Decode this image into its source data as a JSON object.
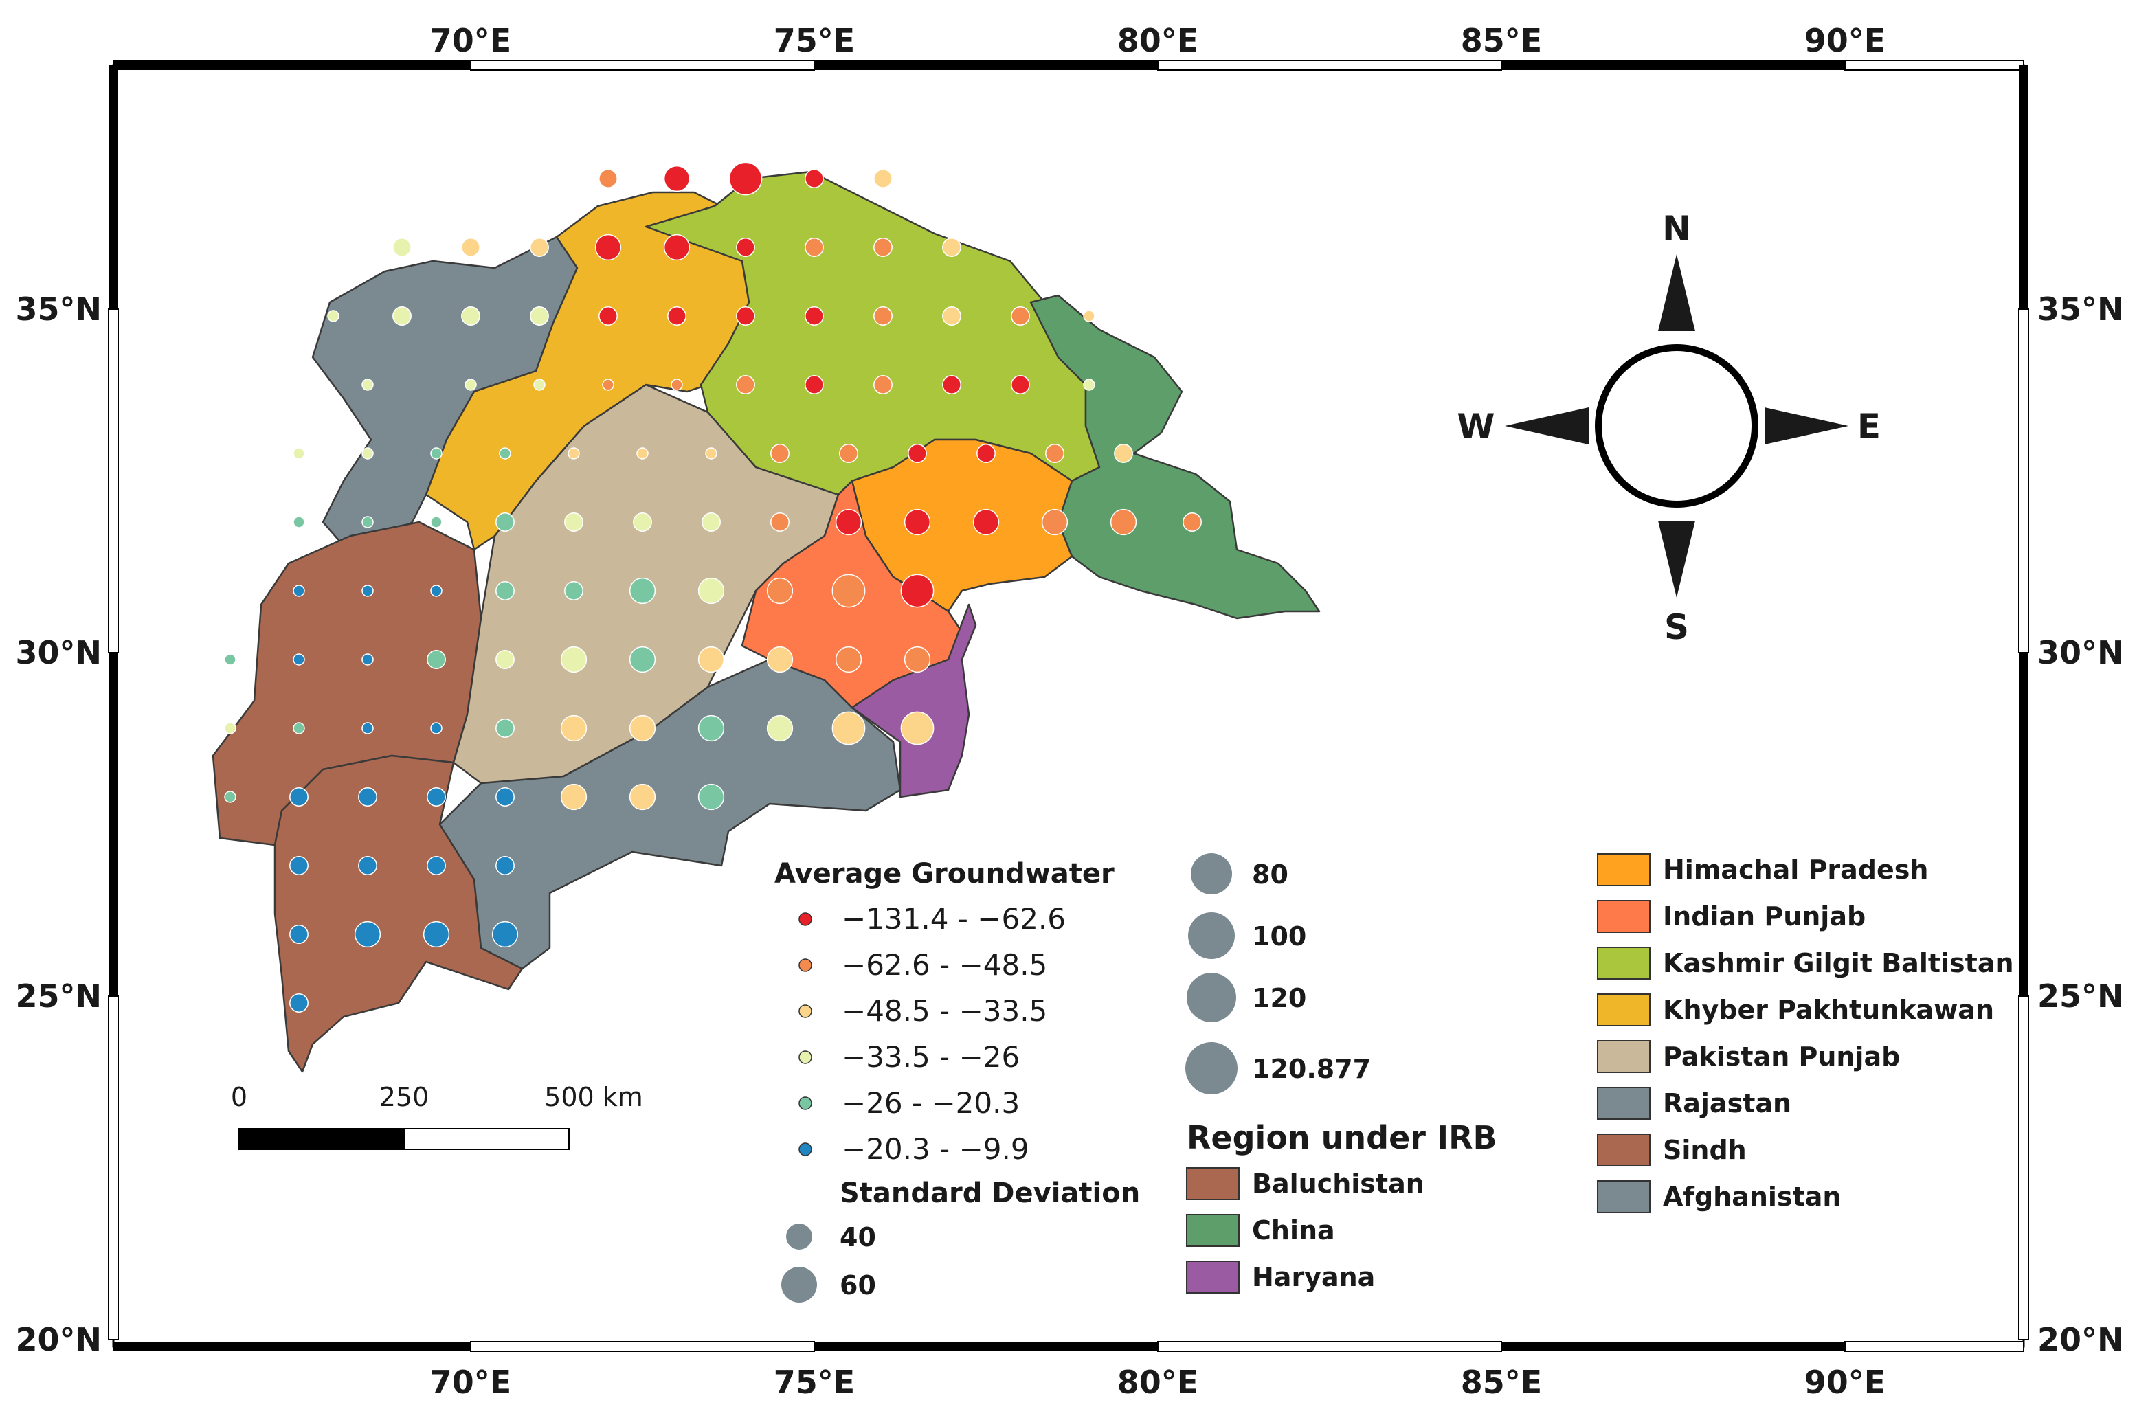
{
  "map": {
    "longitude_labels": [
      "70°E",
      "75°E",
      "80°E",
      "85°E",
      "90°E"
    ],
    "latitude_labels": [
      "35°N",
      "30°N",
      "25°N",
      "20°N"
    ],
    "longitude_values": [
      70,
      75,
      80,
      85,
      90
    ],
    "latitude_values": [
      35,
      30,
      25,
      20
    ]
  },
  "compass": {
    "north": "N",
    "south": "S",
    "east": "E",
    "west": "W"
  },
  "scale_bar": {
    "labels": [
      "0",
      "250",
      "500 km"
    ]
  },
  "groundwater_legend": {
    "title": "Average Groundwater",
    "classes": [
      {
        "label": "−131.4 - −62.6",
        "color": "#e8202a"
      },
      {
        "label": "−62.6 - −48.5",
        "color": "#f48a4e"
      },
      {
        "label": "−48.5 - −33.5",
        "color": "#fcd48a"
      },
      {
        "label": "−33.5 - −26",
        "color": "#e6f2ae"
      },
      {
        "label": "−26 - −20.3",
        "color": "#79c7a2"
      },
      {
        "label": "−20.3 - −9.9",
        "color": "#1f86c2"
      }
    ]
  },
  "std_legend": {
    "title": "Standard Deviation",
    "sizes": [
      {
        "label": "40"
      },
      {
        "label": "60"
      },
      {
        "label": "80"
      },
      {
        "label": "100"
      },
      {
        "label": "120"
      },
      {
        "label": "120.877"
      }
    ],
    "symbol_color": "#7b8a91"
  },
  "region_legend": {
    "title": "Region under IRB",
    "items": [
      {
        "label": "Baluchistan",
        "color": "#a9684f"
      },
      {
        "label": "China",
        "color": "#5e9e6a"
      },
      {
        "label": "Haryana",
        "color": "#9a5ba3"
      },
      {
        "label": "Himachal Pradesh",
        "color": "#ffa21f"
      },
      {
        "label": "Indian Punjab",
        "color": "#ff7a4a"
      },
      {
        "label": "Kashmir Gilgit Baltistan",
        "color": "#aac63c"
      },
      {
        "label": "Khyber Pakhtunkawan",
        "color": "#f0b62a"
      },
      {
        "label": "Pakistan Punjab",
        "color": "#c9b89a"
      },
      {
        "label": "Rajastan",
        "color": "#7b8a91"
      },
      {
        "label": "Sindh",
        "color": "#a9684f"
      },
      {
        "label": "Afghanistan",
        "color": "#7b8a91"
      }
    ]
  },
  "stations": [
    {
      "lon": 72.0,
      "lat": 36.9,
      "cls": 1,
      "sd": 60
    },
    {
      "lon": 73.0,
      "lat": 36.9,
      "cls": 0,
      "sd": 80
    },
    {
      "lon": 74.0,
      "lat": 36.9,
      "cls": 0,
      "sd": 100
    },
    {
      "lon": 75.0,
      "lat": 36.9,
      "cls": 0,
      "sd": 60
    },
    {
      "lon": 76.0,
      "lat": 36.9,
      "cls": 2,
      "sd": 60
    },
    {
      "lon": 69.0,
      "lat": 35.9,
      "cls": 3,
      "sd": 60
    },
    {
      "lon": 70.0,
      "lat": 35.9,
      "cls": 2,
      "sd": 60
    },
    {
      "lon": 71.0,
      "lat": 35.9,
      "cls": 2,
      "sd": 60
    },
    {
      "lon": 72.0,
      "lat": 35.9,
      "cls": 0,
      "sd": 80
    },
    {
      "lon": 73.0,
      "lat": 35.9,
      "cls": 0,
      "sd": 80
    },
    {
      "lon": 74.0,
      "lat": 35.9,
      "cls": 0,
      "sd": 60
    },
    {
      "lon": 75.0,
      "lat": 35.9,
      "cls": 1,
      "sd": 60
    },
    {
      "lon": 76.0,
      "lat": 35.9,
      "cls": 1,
      "sd": 60
    },
    {
      "lon": 77.0,
      "lat": 35.9,
      "cls": 2,
      "sd": 60
    },
    {
      "lon": 68.0,
      "lat": 34.9,
      "cls": 3,
      "sd": 40
    },
    {
      "lon": 69.0,
      "lat": 34.9,
      "cls": 3,
      "sd": 60
    },
    {
      "lon": 70.0,
      "lat": 34.9,
      "cls": 3,
      "sd": 60
    },
    {
      "lon": 71.0,
      "lat": 34.9,
      "cls": 3,
      "sd": 60
    },
    {
      "lon": 72.0,
      "lat": 34.9,
      "cls": 0,
      "sd": 60
    },
    {
      "lon": 73.0,
      "lat": 34.9,
      "cls": 0,
      "sd": 60
    },
    {
      "lon": 74.0,
      "lat": 34.9,
      "cls": 0,
      "sd": 60
    },
    {
      "lon": 75.0,
      "lat": 34.9,
      "cls": 0,
      "sd": 60
    },
    {
      "lon": 76.0,
      "lat": 34.9,
      "cls": 1,
      "sd": 60
    },
    {
      "lon": 77.0,
      "lat": 34.9,
      "cls": 2,
      "sd": 60
    },
    {
      "lon": 78.0,
      "lat": 34.9,
      "cls": 1,
      "sd": 60
    },
    {
      "lon": 79.0,
      "lat": 34.9,
      "cls": 2,
      "sd": 40
    },
    {
      "lon": 68.5,
      "lat": 33.9,
      "cls": 3,
      "sd": 40
    },
    {
      "lon": 70.0,
      "lat": 33.9,
      "cls": 3,
      "sd": 40
    },
    {
      "lon": 71.0,
      "lat": 33.9,
      "cls": 3,
      "sd": 40
    },
    {
      "lon": 72.0,
      "lat": 33.9,
      "cls": 1,
      "sd": 40
    },
    {
      "lon": 73.0,
      "lat": 33.9,
      "cls": 1,
      "sd": 40
    },
    {
      "lon": 74.0,
      "lat": 33.9,
      "cls": 1,
      "sd": 60
    },
    {
      "lon": 75.0,
      "lat": 33.9,
      "cls": 0,
      "sd": 60
    },
    {
      "lon": 76.0,
      "lat": 33.9,
      "cls": 1,
      "sd": 60
    },
    {
      "lon": 77.0,
      "lat": 33.9,
      "cls": 0,
      "sd": 60
    },
    {
      "lon": 78.0,
      "lat": 33.9,
      "cls": 0,
      "sd": 60
    },
    {
      "lon": 79.0,
      "lat": 33.9,
      "cls": 3,
      "sd": 40
    },
    {
      "lon": 67.5,
      "lat": 32.9,
      "cls": 3,
      "sd": 40
    },
    {
      "lon": 68.5,
      "lat": 32.9,
      "cls": 3,
      "sd": 40
    },
    {
      "lon": 69.5,
      "lat": 32.9,
      "cls": 4,
      "sd": 40
    },
    {
      "lon": 70.5,
      "lat": 32.9,
      "cls": 4,
      "sd": 40
    },
    {
      "lon": 71.5,
      "lat": 32.9,
      "cls": 2,
      "sd": 40
    },
    {
      "lon": 72.5,
      "lat": 32.9,
      "cls": 2,
      "sd": 40
    },
    {
      "lon": 73.5,
      "lat": 32.9,
      "cls": 2,
      "sd": 40
    },
    {
      "lon": 74.5,
      "lat": 32.9,
      "cls": 1,
      "sd": 60
    },
    {
      "lon": 75.5,
      "lat": 32.9,
      "cls": 1,
      "sd": 60
    },
    {
      "lon": 76.5,
      "lat": 32.9,
      "cls": 0,
      "sd": 60
    },
    {
      "lon": 77.5,
      "lat": 32.9,
      "cls": 0,
      "sd": 60
    },
    {
      "lon": 78.5,
      "lat": 32.9,
      "cls": 1,
      "sd": 60
    },
    {
      "lon": 79.5,
      "lat": 32.9,
      "cls": 2,
      "sd": 60
    },
    {
      "lon": 67.5,
      "lat": 31.9,
      "cls": 4,
      "sd": 40
    },
    {
      "lon": 68.5,
      "lat": 31.9,
      "cls": 4,
      "sd": 40
    },
    {
      "lon": 69.5,
      "lat": 31.9,
      "cls": 4,
      "sd": 40
    },
    {
      "lon": 70.5,
      "lat": 31.9,
      "cls": 4,
      "sd": 60
    },
    {
      "lon": 71.5,
      "lat": 31.9,
      "cls": 3,
      "sd": 60
    },
    {
      "lon": 72.5,
      "lat": 31.9,
      "cls": 3,
      "sd": 60
    },
    {
      "lon": 73.5,
      "lat": 31.9,
      "cls": 3,
      "sd": 60
    },
    {
      "lon": 74.5,
      "lat": 31.9,
      "cls": 1,
      "sd": 60
    },
    {
      "lon": 75.5,
      "lat": 31.9,
      "cls": 0,
      "sd": 80
    },
    {
      "lon": 76.5,
      "lat": 31.9,
      "cls": 0,
      "sd": 80
    },
    {
      "lon": 77.5,
      "lat": 31.9,
      "cls": 0,
      "sd": 80
    },
    {
      "lon": 78.5,
      "lat": 31.9,
      "cls": 1,
      "sd": 80
    },
    {
      "lon": 79.5,
      "lat": 31.9,
      "cls": 1,
      "sd": 80
    },
    {
      "lon": 80.5,
      "lat": 31.9,
      "cls": 1,
      "sd": 60
    },
    {
      "lon": 67.5,
      "lat": 30.9,
      "cls": 5,
      "sd": 40
    },
    {
      "lon": 68.5,
      "lat": 30.9,
      "cls": 5,
      "sd": 40
    },
    {
      "lon": 69.5,
      "lat": 30.9,
      "cls": 5,
      "sd": 40
    },
    {
      "lon": 70.5,
      "lat": 30.9,
      "cls": 4,
      "sd": 60
    },
    {
      "lon": 71.5,
      "lat": 30.9,
      "cls": 4,
      "sd": 60
    },
    {
      "lon": 72.5,
      "lat": 30.9,
      "cls": 4,
      "sd": 80
    },
    {
      "lon": 73.5,
      "lat": 30.9,
      "cls": 3,
      "sd": 80
    },
    {
      "lon": 74.5,
      "lat": 30.9,
      "cls": 1,
      "sd": 80
    },
    {
      "lon": 75.5,
      "lat": 30.9,
      "cls": 1,
      "sd": 100
    },
    {
      "lon": 76.5,
      "lat": 30.9,
      "cls": 0,
      "sd": 100
    },
    {
      "lon": 66.5,
      "lat": 29.9,
      "cls": 4,
      "sd": 40
    },
    {
      "lon": 67.5,
      "lat": 29.9,
      "cls": 5,
      "sd": 40
    },
    {
      "lon": 68.5,
      "lat": 29.9,
      "cls": 5,
      "sd": 40
    },
    {
      "lon": 69.5,
      "lat": 29.9,
      "cls": 4,
      "sd": 60
    },
    {
      "lon": 70.5,
      "lat": 29.9,
      "cls": 3,
      "sd": 60
    },
    {
      "lon": 71.5,
      "lat": 29.9,
      "cls": 3,
      "sd": 80
    },
    {
      "lon": 72.5,
      "lat": 29.9,
      "cls": 4,
      "sd": 80
    },
    {
      "lon": 73.5,
      "lat": 29.9,
      "cls": 2,
      "sd": 80
    },
    {
      "lon": 74.5,
      "lat": 29.9,
      "cls": 2,
      "sd": 80
    },
    {
      "lon": 75.5,
      "lat": 29.9,
      "cls": 1,
      "sd": 80
    },
    {
      "lon": 76.5,
      "lat": 29.9,
      "cls": 1,
      "sd": 80
    },
    {
      "lon": 66.5,
      "lat": 28.9,
      "cls": 3,
      "sd": 40
    },
    {
      "lon": 67.5,
      "lat": 28.9,
      "cls": 4,
      "sd": 40
    },
    {
      "lon": 68.5,
      "lat": 28.9,
      "cls": 5,
      "sd": 40
    },
    {
      "lon": 69.5,
      "lat": 28.9,
      "cls": 5,
      "sd": 40
    },
    {
      "lon": 70.5,
      "lat": 28.9,
      "cls": 4,
      "sd": 60
    },
    {
      "lon": 71.5,
      "lat": 28.9,
      "cls": 2,
      "sd": 80
    },
    {
      "lon": 72.5,
      "lat": 28.9,
      "cls": 2,
      "sd": 80
    },
    {
      "lon": 73.5,
      "lat": 28.9,
      "cls": 4,
      "sd": 80
    },
    {
      "lon": 74.5,
      "lat": 28.9,
      "cls": 3,
      "sd": 80
    },
    {
      "lon": 75.5,
      "lat": 28.9,
      "cls": 2,
      "sd": 100
    },
    {
      "lon": 76.5,
      "lat": 28.9,
      "cls": 2,
      "sd": 100
    },
    {
      "lon": 66.5,
      "lat": 27.9,
      "cls": 4,
      "sd": 40
    },
    {
      "lon": 67.5,
      "lat": 27.9,
      "cls": 5,
      "sd": 60
    },
    {
      "lon": 68.5,
      "lat": 27.9,
      "cls": 5,
      "sd": 60
    },
    {
      "lon": 69.5,
      "lat": 27.9,
      "cls": 5,
      "sd": 60
    },
    {
      "lon": 70.5,
      "lat": 27.9,
      "cls": 5,
      "sd": 60
    },
    {
      "lon": 71.5,
      "lat": 27.9,
      "cls": 2,
      "sd": 80
    },
    {
      "lon": 72.5,
      "lat": 27.9,
      "cls": 2,
      "sd": 80
    },
    {
      "lon": 73.5,
      "lat": 27.9,
      "cls": 4,
      "sd": 80
    },
    {
      "lon": 67.5,
      "lat": 26.9,
      "cls": 5,
      "sd": 60
    },
    {
      "lon": 68.5,
      "lat": 26.9,
      "cls": 5,
      "sd": 60
    },
    {
      "lon": 69.5,
      "lat": 26.9,
      "cls": 5,
      "sd": 60
    },
    {
      "lon": 70.5,
      "lat": 26.9,
      "cls": 5,
      "sd": 60
    },
    {
      "lon": 67.5,
      "lat": 25.9,
      "cls": 5,
      "sd": 60
    },
    {
      "lon": 68.5,
      "lat": 25.9,
      "cls": 5,
      "sd": 80
    },
    {
      "lon": 69.5,
      "lat": 25.9,
      "cls": 5,
      "sd": 80
    },
    {
      "lon": 70.5,
      "lat": 25.9,
      "cls": 5,
      "sd": 80
    },
    {
      "lon": 67.5,
      "lat": 24.9,
      "cls": 5,
      "sd": 60
    }
  ]
}
